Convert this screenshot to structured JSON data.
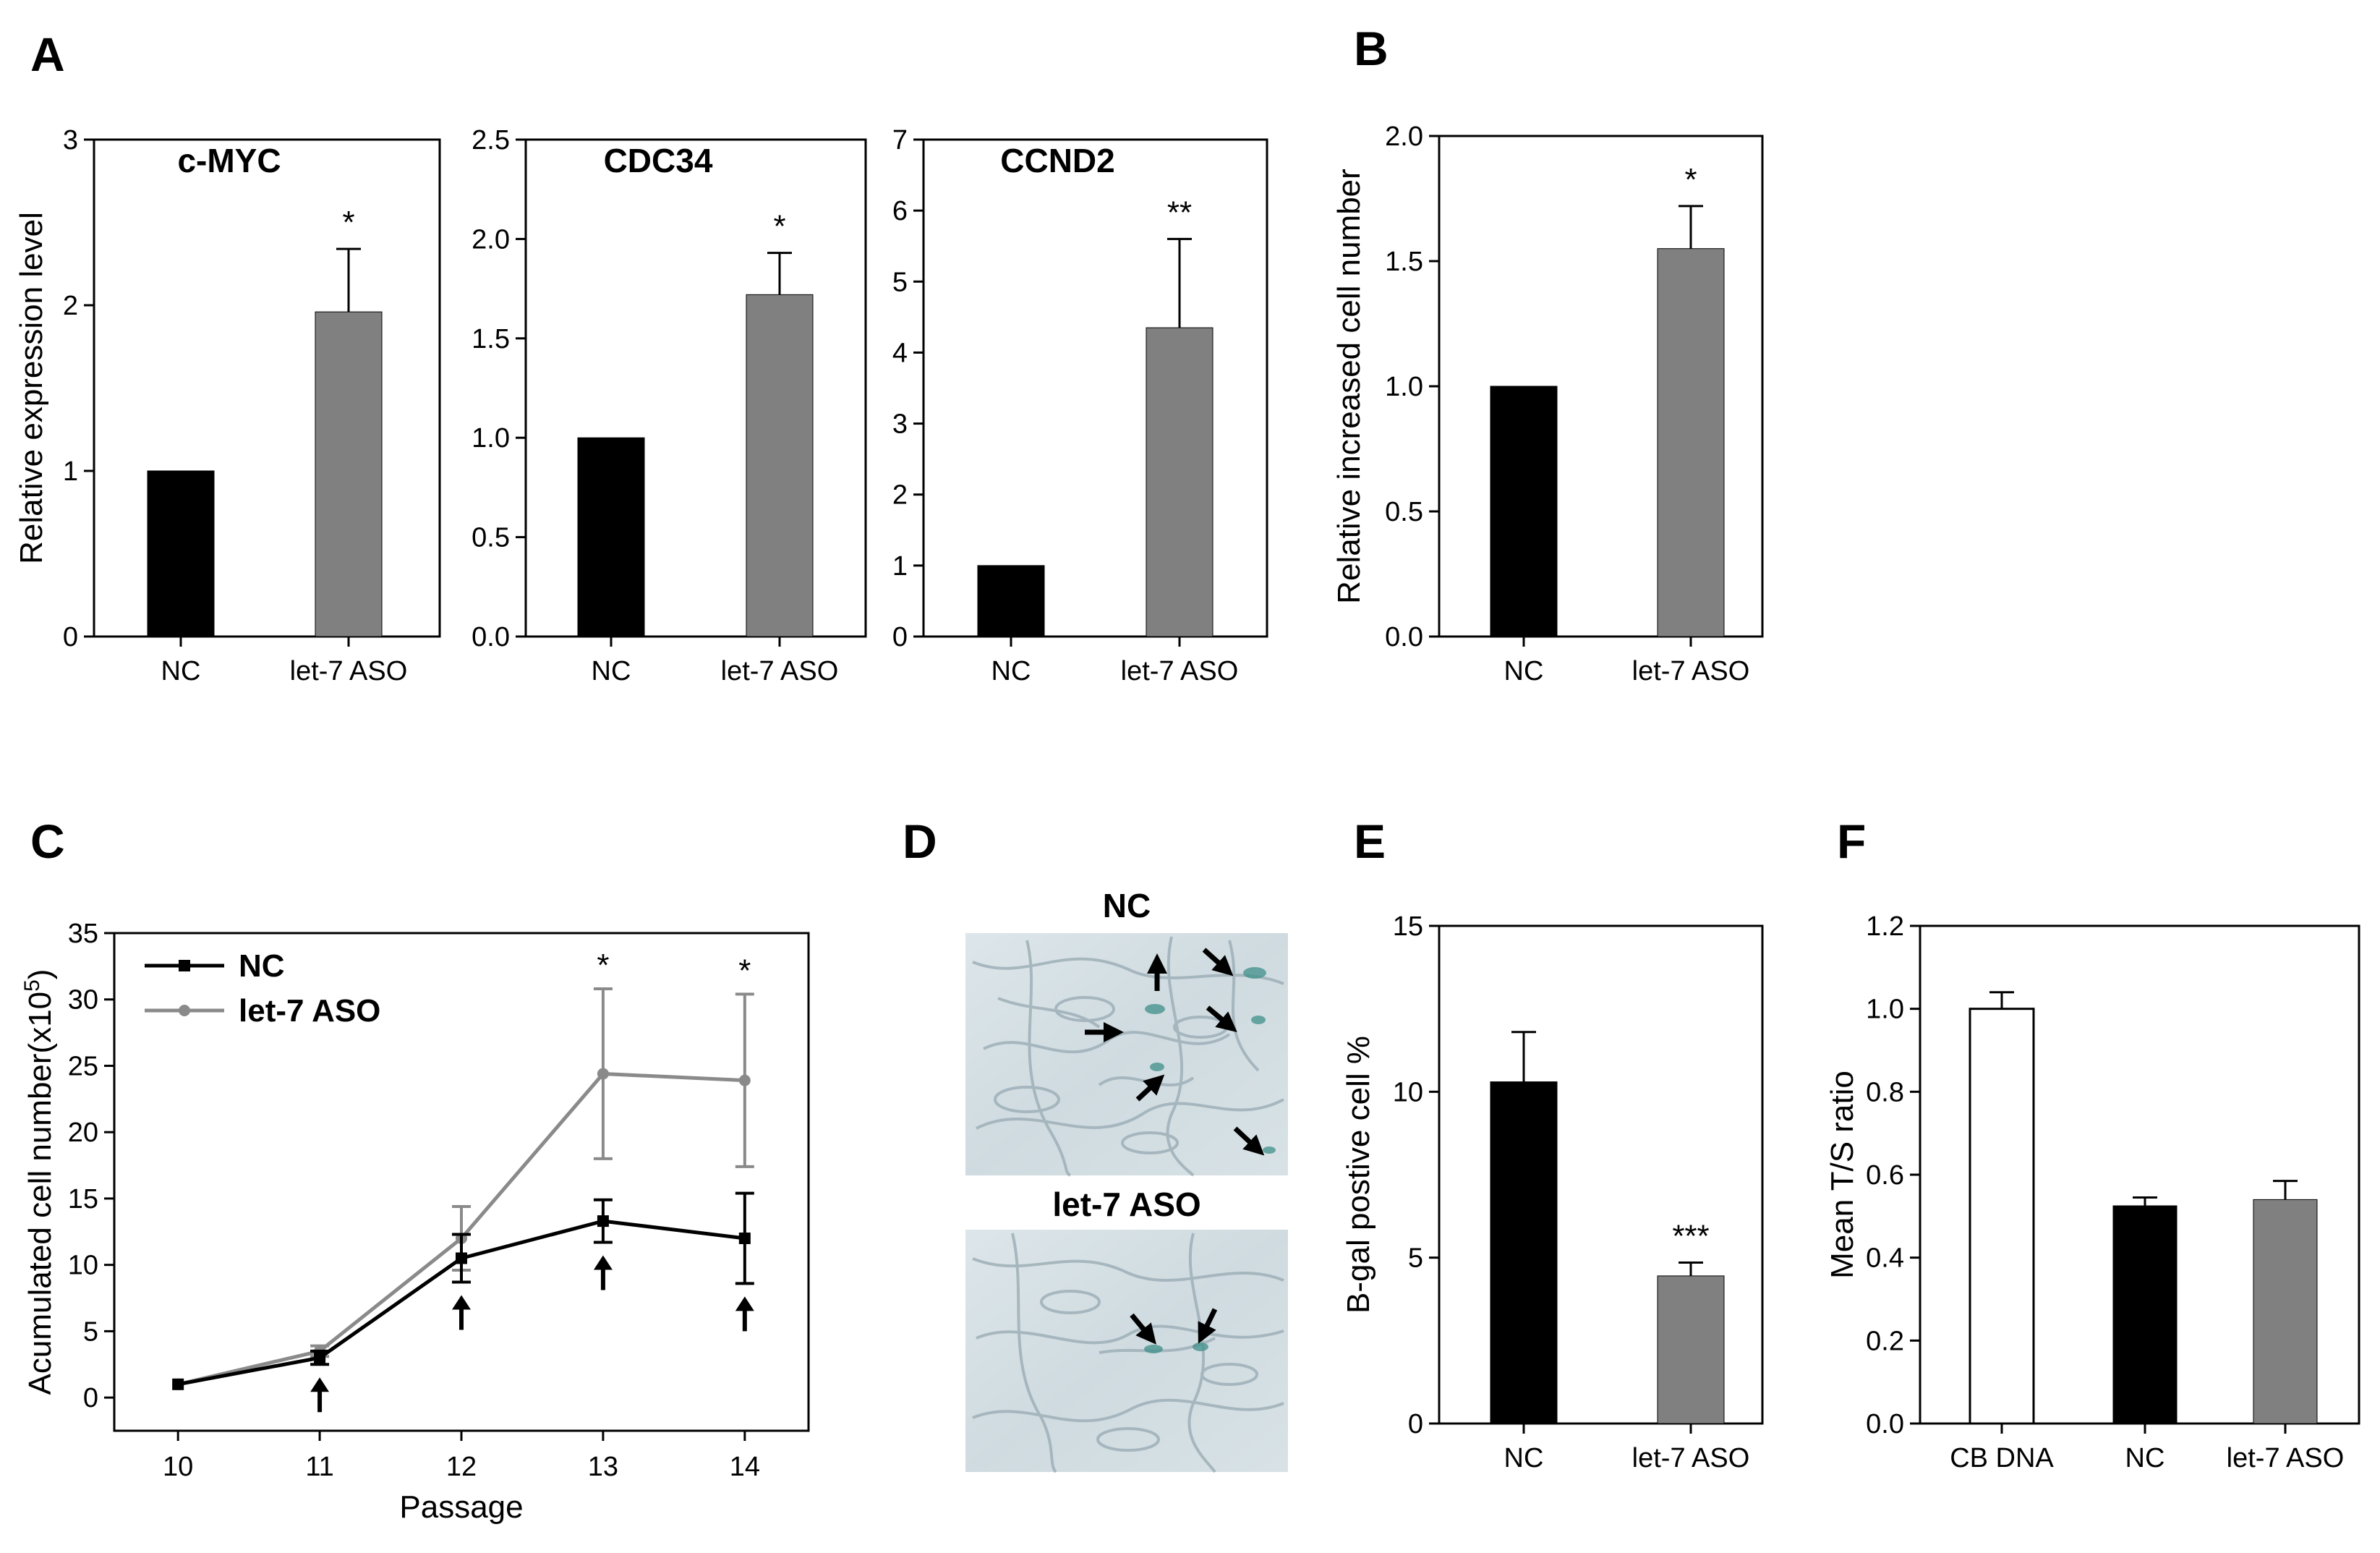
{
  "panel_labels": [
    "A",
    "B",
    "C",
    "D",
    "E",
    "F"
  ],
  "micrograph": {
    "label_top": "NC",
    "label_bottom": "let-7 ASO"
  },
  "chart_data": [
    {
      "id": "A1",
      "type": "bar",
      "panel": "A",
      "title": "c-MYC",
      "categories": [
        "NC",
        "let-7 ASO"
      ],
      "values": [
        1.0,
        1.96
      ],
      "errors": [
        0,
        0.38
      ],
      "colors": [
        "#000000",
        "#808080"
      ],
      "significance": [
        "",
        "*"
      ],
      "ylabel": "Relative expression level",
      "ylim": [
        0,
        3
      ],
      "yticks": [
        0,
        1,
        2,
        3
      ],
      "ytick_labels": [
        "0",
        "1",
        "2",
        "3"
      ]
    },
    {
      "id": "A2",
      "type": "bar",
      "panel": "A",
      "title": "CDC34",
      "categories": [
        "NC",
        "let-7 ASO"
      ],
      "values": [
        1.0,
        1.72
      ],
      "errors": [
        0,
        0.21
      ],
      "colors": [
        "#000000",
        "#808080"
      ],
      "significance": [
        "",
        "*"
      ],
      "ylabel": "",
      "ylim": [
        0,
        2.5
      ],
      "yticks": [
        0,
        0.5,
        1.0,
        1.5,
        2.0,
        2.5
      ],
      "ytick_labels": [
        "0.0",
        "0.5",
        "1.0",
        "1.5",
        "2.0",
        "2.5"
      ]
    },
    {
      "id": "A3",
      "type": "bar",
      "panel": "A",
      "title": "CCND2",
      "categories": [
        "NC",
        "let-7 ASO"
      ],
      "values": [
        1.0,
        4.35
      ],
      "errors": [
        0,
        1.25
      ],
      "colors": [
        "#000000",
        "#808080"
      ],
      "significance": [
        "",
        "**"
      ],
      "ylabel": "",
      "ylim": [
        0,
        7
      ],
      "yticks": [
        0,
        1,
        2,
        3,
        4,
        5,
        6,
        7
      ],
      "ytick_labels": [
        "0",
        "1",
        "2",
        "3",
        "4",
        "5",
        "6",
        "7"
      ]
    },
    {
      "id": "B",
      "type": "bar",
      "panel": "B",
      "title": "",
      "categories": [
        "NC",
        "let-7 ASO"
      ],
      "values": [
        1.0,
        1.55
      ],
      "errors": [
        0,
        0.17
      ],
      "colors": [
        "#000000",
        "#808080"
      ],
      "significance": [
        "",
        "*"
      ],
      "ylabel": "Relative increased cell number",
      "ylim": [
        0,
        2.0
      ],
      "yticks": [
        0,
        0.5,
        1.0,
        1.5,
        2.0
      ],
      "ytick_labels": [
        "0.0",
        "0.5",
        "1.0",
        "1.5",
        "2.0"
      ]
    },
    {
      "id": "C",
      "type": "line",
      "panel": "C",
      "x": [
        10,
        11,
        12,
        13,
        14
      ],
      "series": [
        {
          "name": "NC",
          "values": [
            1.0,
            3.0,
            10.5,
            13.3,
            12.0
          ],
          "errors": [
            0,
            0.5,
            1.8,
            1.6,
            3.4
          ],
          "color": "#000000",
          "marker": "square"
        },
        {
          "name": "let-7 ASO",
          "values": [
            1.0,
            3.5,
            12.0,
            24.4,
            23.9
          ],
          "errors": [
            0,
            0.4,
            2.4,
            6.4,
            6.5
          ],
          "color": "#8a8a8a",
          "marker": "circle"
        }
      ],
      "significance": [
        "",
        "",
        "",
        "*",
        "*"
      ],
      "arrows_at": [
        11,
        12,
        13,
        14
      ],
      "xlabel": "Passage",
      "ylabel_main": "Acumulated cell number(x10",
      "ylabel_sup": "5",
      "ylabel_end": ")",
      "xlim": [
        9.55,
        14.45
      ],
      "ylim": [
        -2.5,
        35
      ],
      "xticks": [
        10,
        11,
        12,
        13,
        14
      ],
      "xtick_labels": [
        "10",
        "11",
        "12",
        "13",
        "14"
      ],
      "yticks": [
        0,
        5,
        10,
        15,
        20,
        25,
        30,
        35
      ],
      "ytick_labels": [
        "0",
        "5",
        "10",
        "15",
        "20",
        "25",
        "30",
        "35"
      ]
    },
    {
      "id": "E",
      "type": "bar",
      "panel": "E",
      "title": "",
      "categories": [
        "NC",
        "let-7 ASO"
      ],
      "values": [
        10.3,
        4.45
      ],
      "errors": [
        1.5,
        0.4
      ],
      "colors": [
        "#000000",
        "#808080"
      ],
      "significance": [
        "",
        "***"
      ],
      "ylabel": "B-gal postive cell %",
      "ylim": [
        0,
        15
      ],
      "yticks": [
        0,
        5,
        10,
        15
      ],
      "ytick_labels": [
        "0",
        "5",
        "10",
        "15"
      ]
    },
    {
      "id": "F",
      "type": "bar",
      "panel": "F",
      "title": "",
      "categories": [
        "CB DNA",
        "NC",
        "let-7 ASO"
      ],
      "values": [
        1.0,
        0.525,
        0.54
      ],
      "errors": [
        0.04,
        0.02,
        0.045
      ],
      "colors": [
        "#ffffff",
        "#000000",
        "#808080"
      ],
      "significance": [
        "",
        "",
        ""
      ],
      "ylabel": "Mean T/S ratio",
      "ylim": [
        0,
        1.2
      ],
      "yticks": [
        0,
        0.2,
        0.4,
        0.6,
        0.8,
        1.0,
        1.2
      ],
      "ytick_labels": [
        "0.0",
        "0.2",
        "0.4",
        "0.6",
        "0.8",
        "1.0",
        "1.2"
      ]
    }
  ]
}
